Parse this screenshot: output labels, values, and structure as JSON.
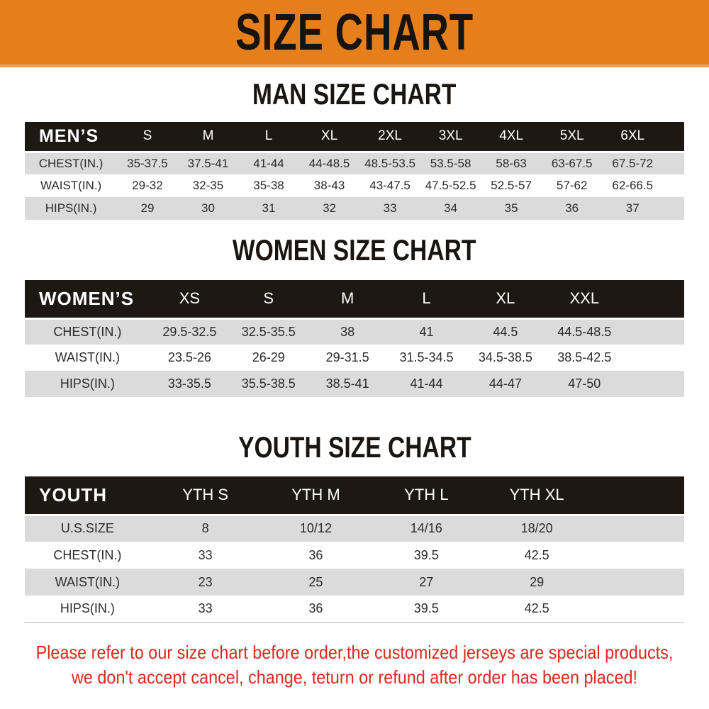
{
  "banner": {
    "title": "SIZE CHART",
    "bg_color": "#E67E1B",
    "text_color": "#161310"
  },
  "sections": [
    {
      "id": "men",
      "heading": "MAN SIZE CHART",
      "table": {
        "header_label": "MEN’S",
        "columns": [
          "S",
          "M",
          "L",
          "XL",
          "2XL",
          "3XL",
          "4XL",
          "5XL",
          "6XL"
        ],
        "rows": [
          {
            "label": "CHEST(IN.)",
            "values": [
              "35-37.5",
              "37.5-41",
              "41-44",
              "44-48.5",
              "48.5-53.5",
              "53.5-58",
              "58-63",
              "63-67.5",
              "67.5-72"
            ]
          },
          {
            "label": "WAIST(IN.)",
            "values": [
              "29-32",
              "32-35",
              "35-38",
              "38-43",
              "43-47.5",
              "47.5-52.5",
              "52.5-57",
              "57-62",
              "62-66.5"
            ]
          },
          {
            "label": "HIPS(IN.)",
            "values": [
              "29",
              "30",
              "31",
              "32",
              "33",
              "34",
              "35",
              "36",
              "37"
            ]
          }
        ]
      }
    },
    {
      "id": "women",
      "heading": "WOMEN SIZE CHART",
      "table": {
        "header_label": "WOMEN’S",
        "columns": [
          "XS",
          "S",
          "M",
          "L",
          "XL",
          "XXL"
        ],
        "rows": [
          {
            "label": "CHEST(IN.)",
            "values": [
              "29.5-32.5",
              "32.5-35.5",
              "38",
              "41",
              "44.5",
              "44.5-48.5"
            ]
          },
          {
            "label": "WAIST(IN.)",
            "values": [
              "23.5-26",
              "26-29",
              "29-31.5",
              "31.5-34.5",
              "34.5-38.5",
              "38.5-42.5"
            ]
          },
          {
            "label": "HIPS(IN.)",
            "values": [
              "33-35.5",
              "35.5-38.5",
              "38.5-41",
              "41-44",
              "44-47",
              "47-50"
            ]
          }
        ]
      }
    },
    {
      "id": "youth",
      "heading": "YOUTH SIZE CHART",
      "table": {
        "header_label": "YOUTH",
        "columns": [
          "YTH S",
          "YTH M",
          "YTH L",
          "YTH XL"
        ],
        "rows": [
          {
            "label": "U.S.SIZE",
            "values": [
              "8",
              "10/12",
              "14/16",
              "18/20"
            ]
          },
          {
            "label": "CHEST(IN.)",
            "values": [
              "33",
              "36",
              "39.5",
              "42.5"
            ]
          },
          {
            "label": "WAIST(IN.)",
            "values": [
              "23",
              "25",
              "27",
              "29"
            ]
          },
          {
            "label": "HIPS(IN.)",
            "values": [
              "33",
              "36",
              "39.5",
              "42.5"
            ]
          }
        ]
      }
    }
  ],
  "disclaimer": {
    "line1": "Please refer to our size chart before order,the customized jerseys are special products,",
    "line2": "we don't accept cancel, change, teturn or refund after order has been placed!",
    "color": "#E0261F"
  },
  "colors": {
    "banner_orange": "#E67E1B",
    "table_header_black": "#1E1813",
    "row_stripe_gray": "#DBDBDB",
    "disclaimer_red": "#E0261F"
  }
}
